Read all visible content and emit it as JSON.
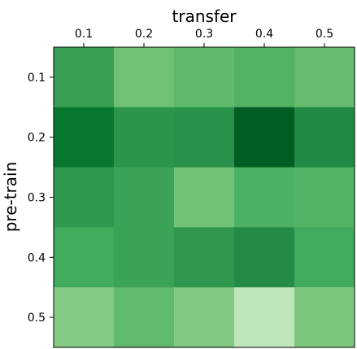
{
  "chart_data": {
    "type": "heatmap",
    "colormap": "Greens",
    "xlabel": "transfer",
    "ylabel": "pre-train",
    "x_categories": [
      "0.1",
      "0.2",
      "0.3",
      "0.4",
      "0.5"
    ],
    "y_categories": [
      "0.1",
      "0.2",
      "0.3",
      "0.4",
      "0.5"
    ],
    "x_axis_position": "top",
    "grid": false,
    "legend": "none",
    "cell_colors": [
      [
        "#37a055",
        "#6fc173",
        "#5eb96b",
        "#52b264",
        "#66bd6f"
      ],
      [
        "#08782f",
        "#2c954c",
        "#28914a",
        "#005d24",
        "#218a44"
      ],
      [
        "#309950",
        "#3ba358",
        "#70c274",
        "#4db163",
        "#52b365"
      ],
      [
        "#40aa5d",
        "#3ba358",
        "#2f974e",
        "#238b45",
        "#41ab5d"
      ],
      [
        "#84cb83",
        "#60ba6c",
        "#81c980",
        "#bfe5ba",
        "#7dc77d"
      ]
    ]
  }
}
